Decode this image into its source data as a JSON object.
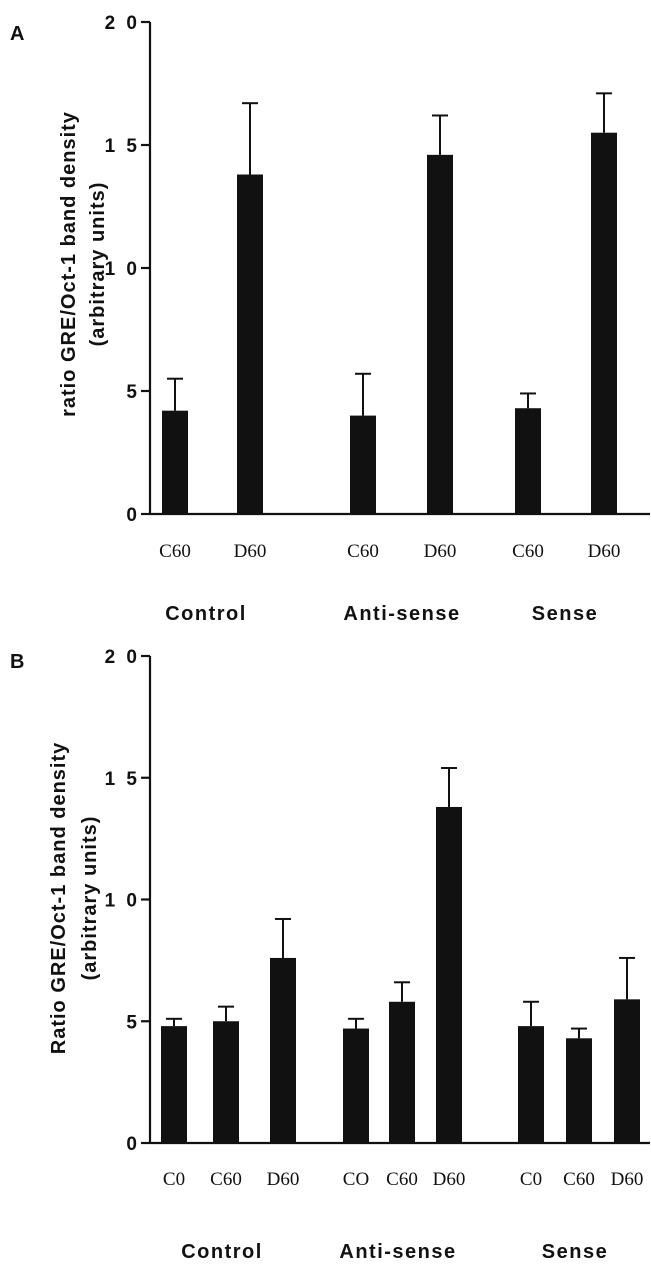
{
  "chart_data": [
    {
      "panel": "A",
      "type": "bar",
      "ylabel_lines": [
        "ratio  GRE/Oct-1  band  density",
        "(arbitrary     units)"
      ],
      "ylim": [
        0,
        20
      ],
      "yticks": [
        0,
        5,
        10,
        15,
        20
      ],
      "ytick_labels": [
        "0",
        "5",
        "1 0",
        "1 5",
        "2 0"
      ],
      "categories": [
        "C60",
        "D60",
        "C60",
        "D60",
        "C60",
        "D60"
      ],
      "groups": [
        {
          "label": "Control",
          "start": 0,
          "count": 2
        },
        {
          "label": "Anti-sense",
          "start": 2,
          "count": 2
        },
        {
          "label": "Sense",
          "start": 4,
          "count": 2
        }
      ],
      "values": [
        4.2,
        13.8,
        4.0,
        14.6,
        4.3,
        15.5
      ],
      "errors": [
        1.3,
        2.9,
        1.7,
        1.6,
        0.6,
        1.6
      ]
    },
    {
      "panel": "B",
      "type": "bar",
      "ylabel_lines": [
        "Ratio  GRE/Oct-1  band  density",
        "(arbitrary     units)"
      ],
      "ylim": [
        0,
        20
      ],
      "yticks": [
        0,
        5,
        10,
        15,
        20
      ],
      "ytick_labels": [
        "0",
        "5",
        "1 0",
        "1 5",
        "2 0"
      ],
      "categories": [
        "C0",
        "C60",
        "D60",
        "CO",
        "C60",
        "D60",
        "C0",
        "C60",
        "D60"
      ],
      "groups": [
        {
          "label": "Control",
          "start": 0,
          "count": 3
        },
        {
          "label": "Anti-sense",
          "start": 3,
          "count": 3
        },
        {
          "label": "Sense",
          "start": 6,
          "count": 3
        }
      ],
      "values": [
        4.8,
        5.0,
        7.6,
        4.7,
        5.8,
        13.8,
        4.8,
        4.3,
        5.9
      ],
      "errors": [
        0.3,
        0.6,
        1.6,
        0.4,
        0.8,
        1.6,
        1.0,
        0.4,
        1.7
      ]
    }
  ]
}
